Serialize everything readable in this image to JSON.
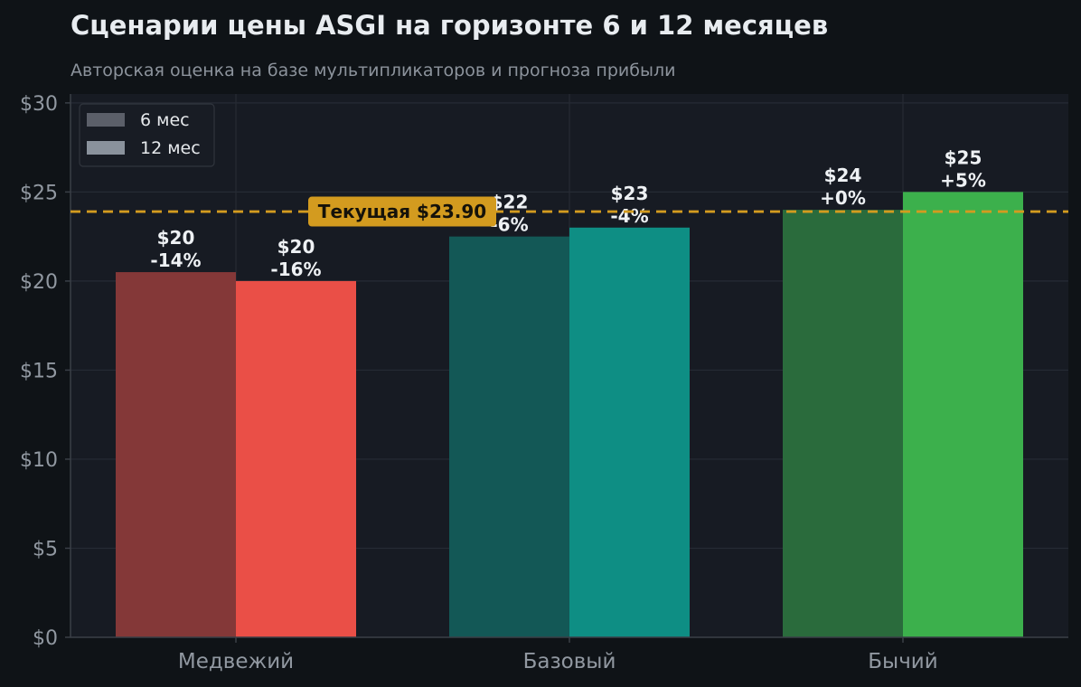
{
  "chart_data": {
    "type": "bar",
    "title": "Сценарии цены ASGI на горизонте 6 и 12 месяцев",
    "subtitle": "Авторская оценка на базе мультипликаторов и прогноза прибыли",
    "xlabel": "",
    "ylabel": "",
    "ylim": [
      0,
      30.5
    ],
    "yticks": [
      "$0",
      "$5",
      "$10",
      "$15",
      "$20",
      "$25",
      "$30"
    ],
    "ytick_values": [
      0,
      5,
      10,
      15,
      20,
      25,
      30
    ],
    "grid": true,
    "legend_position": "top-left",
    "categories": [
      "Медвежий",
      "Базовый",
      "Бычий"
    ],
    "series": [
      {
        "name": "6 мес",
        "values": [
          20.5,
          22.5,
          24.0
        ],
        "value_labels": [
          "$20",
          "$22",
          "$24"
        ],
        "pct_labels": [
          "-14%",
          "-6%",
          "+0%"
        ],
        "colors": [
          "#843838",
          "#135856",
          "#2a6b3c"
        ],
        "legend_color": "#5b5f69"
      },
      {
        "name": "12 мес",
        "values": [
          20.0,
          23.0,
          25.0
        ],
        "value_labels": [
          "$20",
          "$23",
          "$25"
        ],
        "pct_labels": [
          "-16%",
          "-4%",
          "+5%"
        ],
        "colors": [
          "#ea4f47",
          "#0e8e84",
          "#3cb04c"
        ],
        "legend_color": "#8a929c"
      }
    ],
    "reference_line": {
      "value": 23.9,
      "label": "Текущая $23.90",
      "color": "#d39b1f"
    },
    "colors": {
      "page_bg": "#0f1317",
      "plot_bg": "#171b23",
      "grid": "#262b34",
      "axis_text": "#9198a1",
      "title": "#e8ecf0",
      "subtitle": "#8c939c",
      "bar_label": "#eef1f4"
    }
  }
}
